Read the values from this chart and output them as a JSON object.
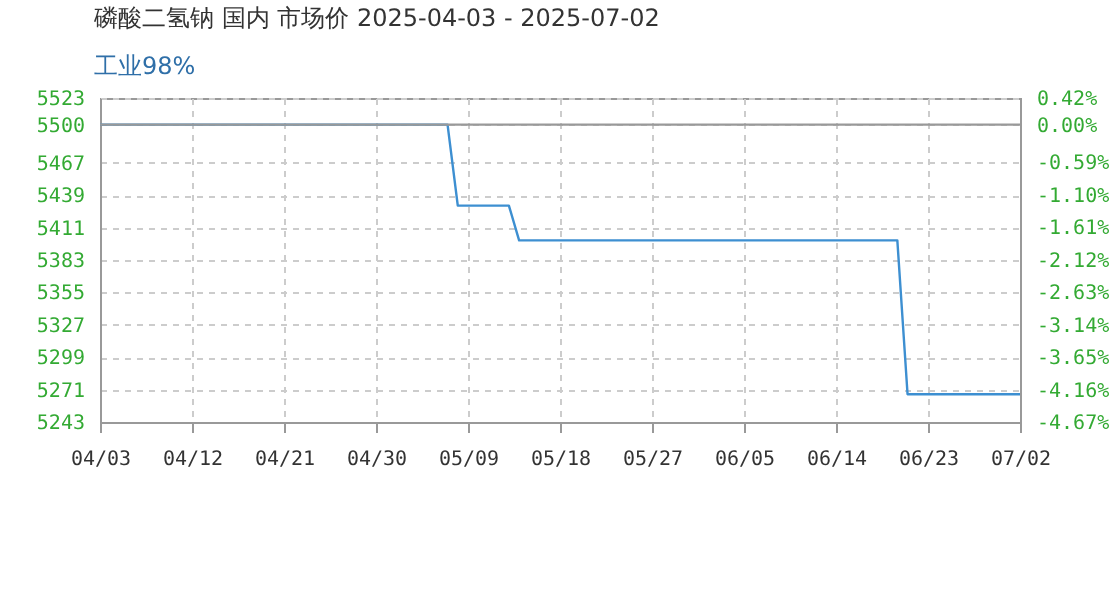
{
  "chart_data": {
    "type": "line",
    "title": "磷酸二氢钠 国内 市场价 2025-04-03 - 2025-07-02",
    "subtitle": "工业98%",
    "x": [
      "2025-04-03",
      "2025-05-07",
      "2025-05-08",
      "2025-05-13",
      "2025-05-14",
      "2025-06-20",
      "2025-06-21",
      "2025-07-02"
    ],
    "series": [
      {
        "color": "#3d8fd1",
        "values": [
          5500,
          5500,
          5430,
          5430,
          5400,
          5400,
          5267,
          5267
        ]
      }
    ],
    "xlim": [
      "2025-04-03",
      "2025-07-02"
    ],
    "xticks": [
      {
        "value": "2025-04-03",
        "label": "04/03"
      },
      {
        "value": "2025-04-12",
        "label": "04/12"
      },
      {
        "value": "2025-04-21",
        "label": "04/21"
      },
      {
        "value": "2025-04-30",
        "label": "04/30"
      },
      {
        "value": "2025-05-09",
        "label": "05/09"
      },
      {
        "value": "2025-05-18",
        "label": "05/18"
      },
      {
        "value": "2025-05-27",
        "label": "05/27"
      },
      {
        "value": "2025-06-05",
        "label": "06/05"
      },
      {
        "value": "2025-06-14",
        "label": "06/14"
      },
      {
        "value": "2025-06-23",
        "label": "06/23"
      },
      {
        "value": "2025-07-02",
        "label": "07/02"
      }
    ],
    "ylim": [
      5243,
      5523
    ],
    "yticks": [
      5523,
      5500,
      5467,
      5439,
      5411,
      5383,
      5355,
      5327,
      5299,
      5271,
      5243
    ],
    "y2lim": [
      -4.67,
      0.42
    ],
    "y2ticks": [
      {
        "value": 0.42,
        "label": "0.42%"
      },
      {
        "value": 0,
        "label": "0.00%"
      },
      {
        "value": -0.59,
        "label": "-0.59%"
      },
      {
        "value": -1.1,
        "label": "-1.10%"
      },
      {
        "value": -1.61,
        "label": "-1.61%"
      },
      {
        "value": -2.12,
        "label": "-2.12%"
      },
      {
        "value": -2.63,
        "label": "-2.63%"
      },
      {
        "value": -3.14,
        "label": "-3.14%"
      },
      {
        "value": -3.65,
        "label": "-3.65%"
      },
      {
        "value": -4.16,
        "label": "-4.16%"
      },
      {
        "value": -4.67,
        "label": "-4.67%"
      }
    ],
    "ref_lines": [
      {
        "axis": "y",
        "value": 5500,
        "color": "#999999"
      }
    ],
    "grid": true,
    "line_style": "solid",
    "marker": "none"
  }
}
